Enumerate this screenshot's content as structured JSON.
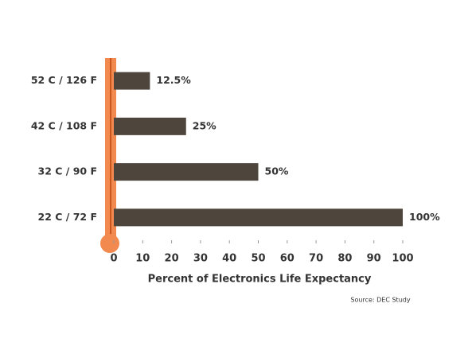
{
  "chart_data": {
    "type": "hbar",
    "categories": [
      "52 C / 126 F",
      "42 C / 108 F",
      "32 C / 90 F",
      "22 C / 72 F"
    ],
    "values": [
      12.5,
      25,
      50,
      100
    ],
    "value_labels": [
      "12.5%",
      "25%",
      "50%",
      "100%"
    ],
    "color": "#4e463c",
    "xlim": [
      0,
      100
    ],
    "xticks": [
      0,
      10,
      20,
      30,
      40,
      50,
      60,
      70,
      80,
      90,
      100
    ],
    "x_label": "Percent of Electronics Life Expectancy",
    "source": "Source:  DEC Study"
  }
}
